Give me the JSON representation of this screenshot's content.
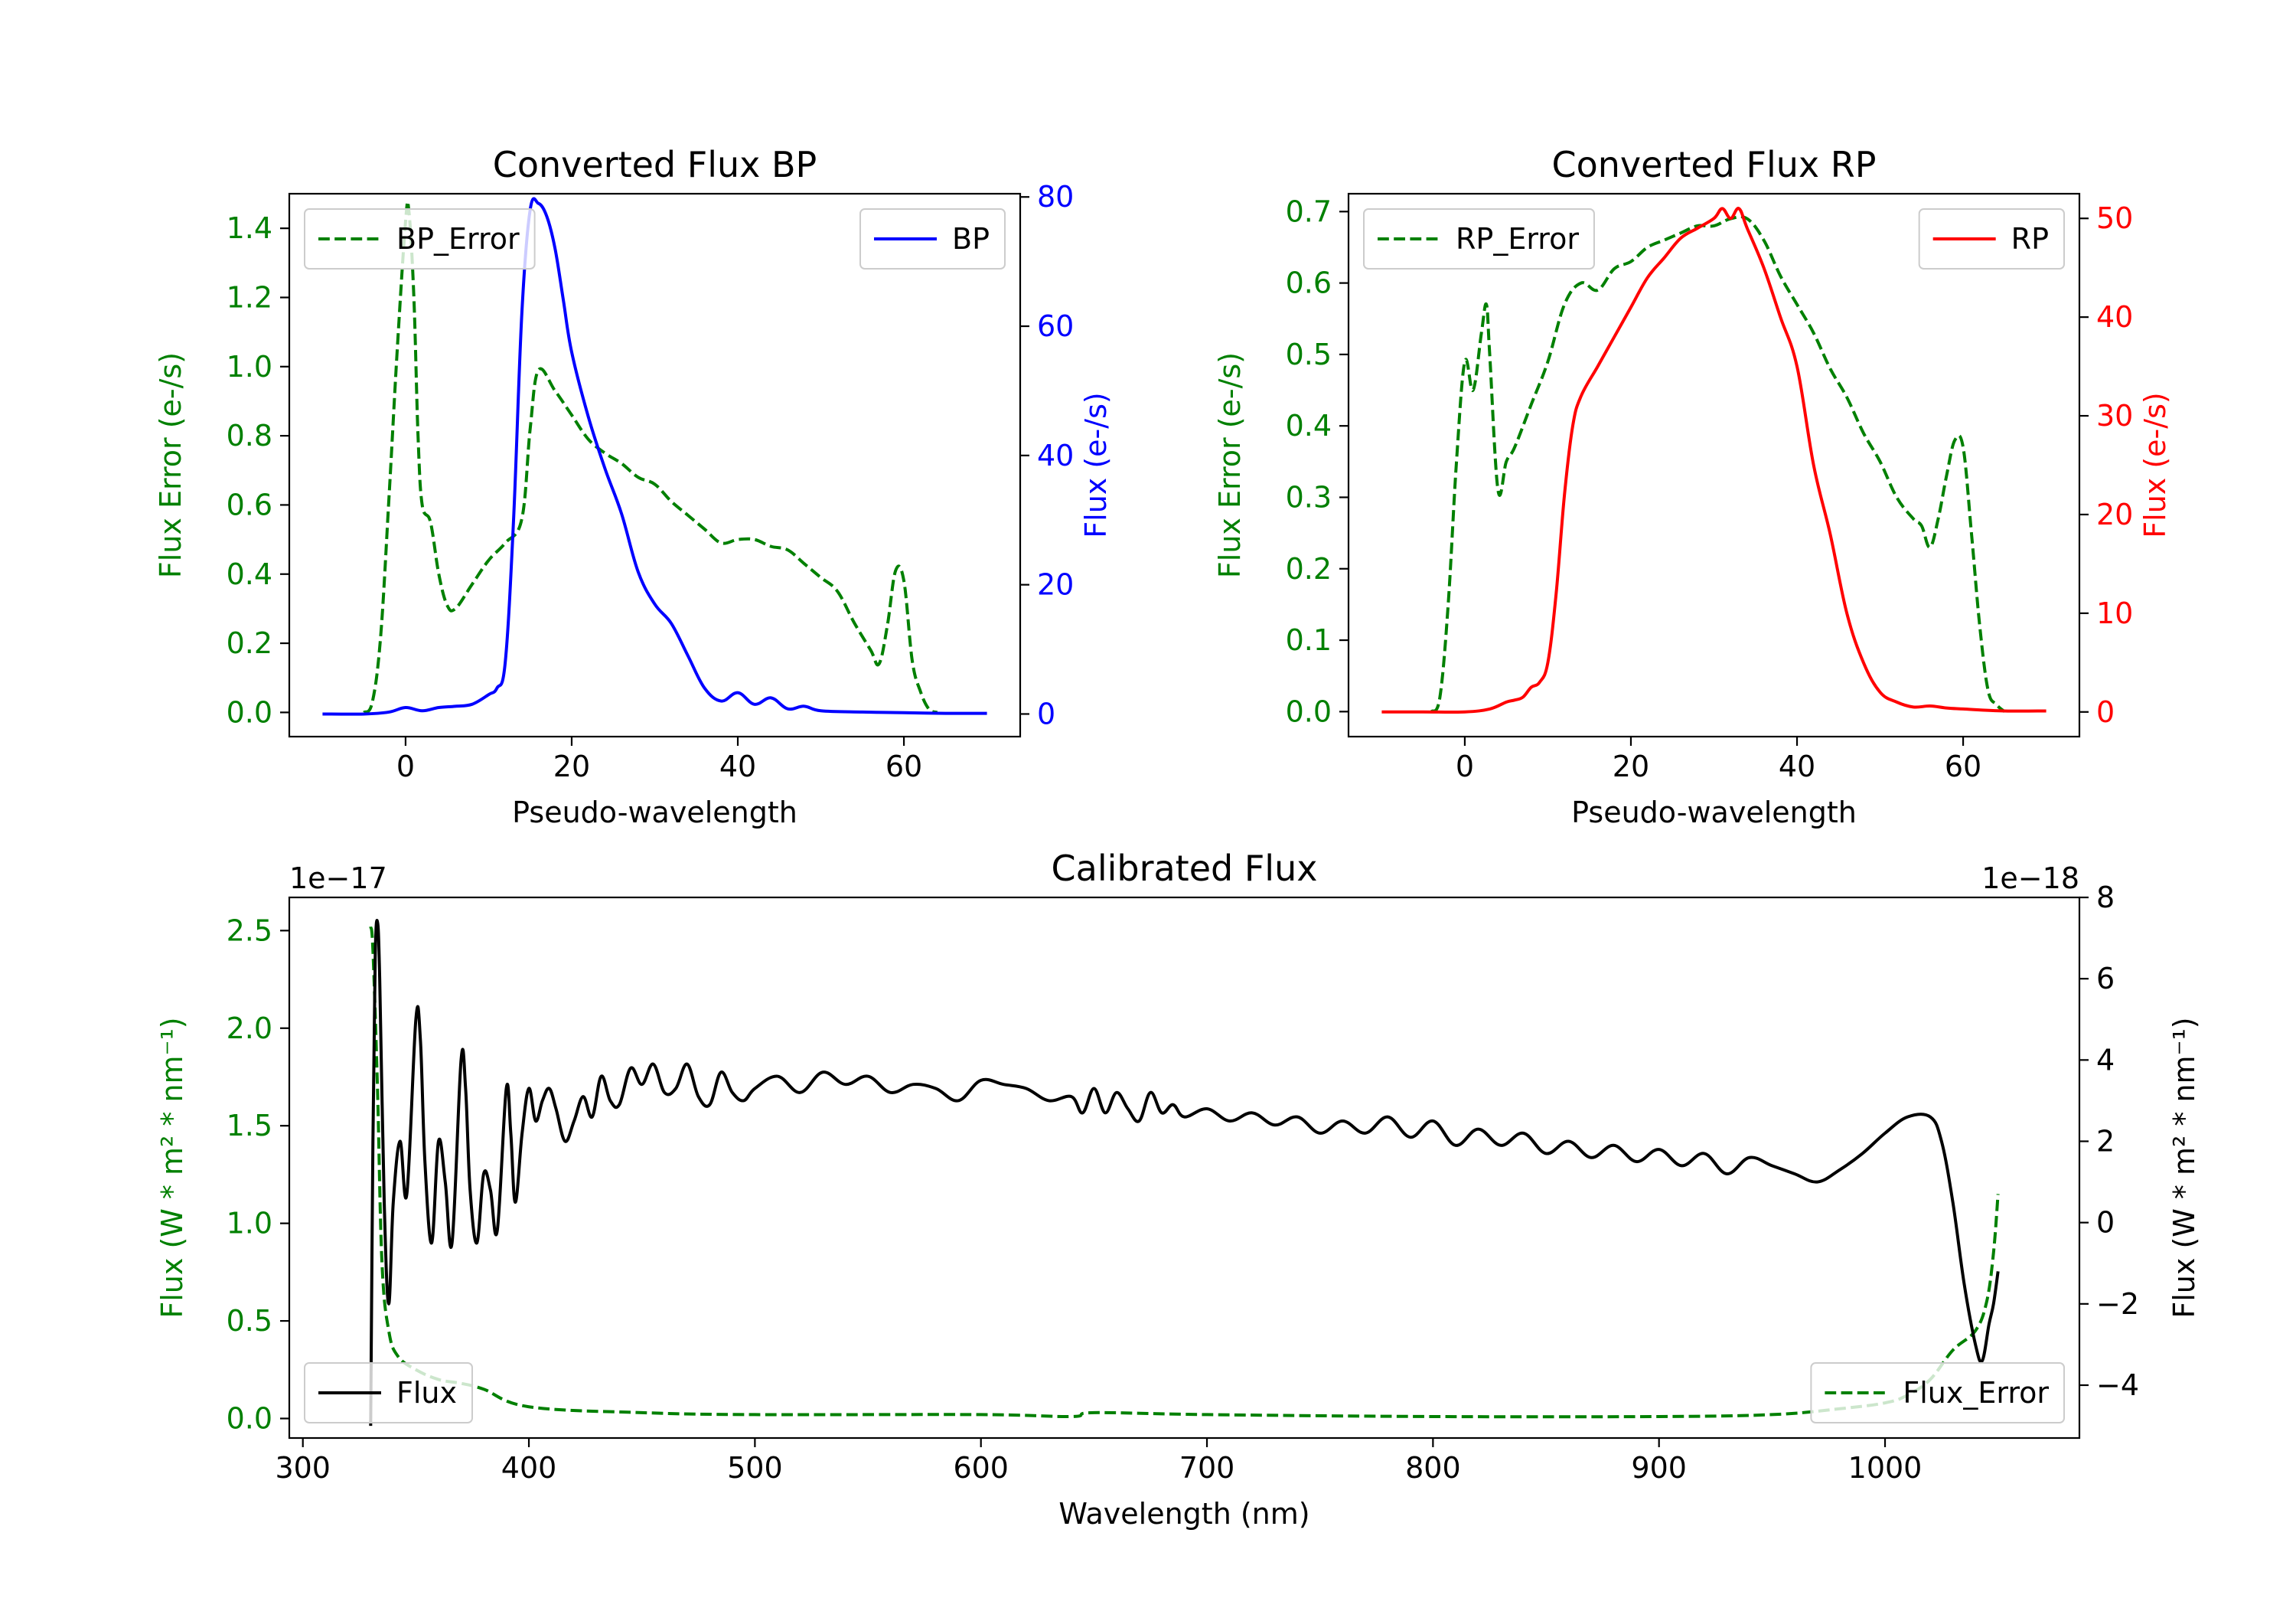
{
  "colors": {
    "green": "#008000",
    "blue": "#0000ff",
    "red": "#ff0000",
    "black": "#000000"
  },
  "chart_data": [
    {
      "type": "line",
      "title": "Converted Flux BP",
      "xlabel": "Pseudo-wavelength",
      "ylabel_left": "Flux Error (e-/s)",
      "ylabel_right": "Flux (e-/s)",
      "xlim": [
        -14,
        74
      ],
      "ylim_left": [
        -0.07,
        1.5
      ],
      "ylim_right": [
        -3.5,
        80.5
      ],
      "xticks": [
        0,
        20,
        40,
        60
      ],
      "yticks_left": [
        0.0,
        0.2,
        0.4,
        0.6,
        0.8,
        1.0,
        1.2,
        1.4
      ],
      "ytick_labels_left": [
        "0.0",
        "0.2",
        "0.4",
        "0.6",
        "0.8",
        "1.0",
        "1.2",
        "1.4"
      ],
      "yticks_right": [
        0,
        20,
        40,
        60,
        80
      ],
      "ytick_labels_right": [
        "0",
        "20",
        "40",
        "60",
        "80"
      ],
      "series": [
        {
          "name": "BP_Error",
          "axis": "left",
          "color": "#008000",
          "style": "dashed",
          "legend_label": "BP_Error",
          "legend_position": "upper left",
          "x": [
            -5,
            -4,
            -3,
            -2,
            -1,
            0,
            0.4,
            1,
            1.5,
            2,
            3,
            4,
            5,
            6,
            8,
            10,
            12,
            14,
            15,
            16,
            18,
            20,
            22,
            24,
            26,
            28,
            30,
            32,
            34,
            36,
            38,
            40,
            42,
            44,
            46,
            48,
            50,
            52,
            54,
            56,
            57,
            58,
            59,
            60,
            61,
            62,
            63,
            64
          ],
          "values": [
            0.0,
            0.03,
            0.22,
            0.62,
            1.05,
            1.42,
            1.45,
            1.2,
            0.8,
            0.6,
            0.55,
            0.4,
            0.31,
            0.3,
            0.37,
            0.44,
            0.49,
            0.56,
            0.82,
            0.99,
            0.93,
            0.86,
            0.79,
            0.75,
            0.72,
            0.68,
            0.66,
            0.61,
            0.57,
            0.53,
            0.49,
            0.5,
            0.5,
            0.48,
            0.47,
            0.43,
            0.39,
            0.35,
            0.26,
            0.18,
            0.14,
            0.25,
            0.41,
            0.38,
            0.15,
            0.06,
            0.01,
            0.0
          ]
        },
        {
          "name": "BP",
          "axis": "right",
          "color": "#0000ff",
          "style": "solid",
          "legend_label": "BP",
          "legend_position": "upper right",
          "x": [
            -10,
            -5,
            -2,
            0,
            2,
            4,
            6,
            8,
            10,
            11,
            12,
            13,
            14,
            15,
            16,
            17,
            18,
            19,
            20,
            22,
            24,
            26,
            28,
            30,
            32,
            34,
            36,
            38,
            40,
            42,
            44,
            46,
            48,
            50,
            55,
            60,
            65,
            70
          ],
          "values": [
            0,
            0,
            0.3,
            1,
            0.5,
            1,
            1.2,
            1.5,
            3,
            4,
            8,
            30,
            62,
            78,
            79,
            77,
            72,
            64,
            56,
            46,
            38,
            31,
            22,
            17,
            14,
            9,
            4,
            2,
            3.3,
            1.5,
            2.5,
            0.8,
            1.2,
            0.5,
            0.3,
            0.2,
            0.1,
            0.1
          ]
        }
      ]
    },
    {
      "type": "line",
      "title": "Converted Flux RP",
      "xlabel": "Pseudo-wavelength",
      "ylabel_left": "Flux Error (e-/s)",
      "ylabel_right": "Flux (e-/s)",
      "xlim": [
        -14,
        74
      ],
      "ylim_left": [
        -0.035,
        0.725
      ],
      "ylim_right": [
        -2.5,
        52.5
      ],
      "xticks": [
        0,
        20,
        40,
        60
      ],
      "yticks_left": [
        0.0,
        0.1,
        0.2,
        0.3,
        0.4,
        0.5,
        0.6,
        0.7
      ],
      "ytick_labels_left": [
        "0.0",
        "0.1",
        "0.2",
        "0.3",
        "0.4",
        "0.5",
        "0.6",
        "0.7"
      ],
      "yticks_right": [
        0,
        10,
        20,
        30,
        40,
        50
      ],
      "ytick_labels_right": [
        "0",
        "10",
        "20",
        "30",
        "40",
        "50"
      ],
      "series": [
        {
          "name": "RP_Error",
          "axis": "left",
          "color": "#008000",
          "style": "dashed",
          "legend_label": "RP_Error",
          "legend_position": "upper left",
          "x": [
            -4,
            -3,
            -2,
            -1,
            0,
            1,
            2,
            2.6,
            3,
            4,
            5,
            6,
            8,
            10,
            12,
            14,
            16,
            18,
            20,
            22,
            24,
            26,
            28,
            30,
            32,
            34,
            36,
            38,
            40,
            42,
            44,
            46,
            48,
            50,
            52,
            54,
            55,
            56,
            57,
            58,
            59,
            60,
            61,
            62,
            63,
            64,
            65
          ],
          "values": [
            0.0,
            0.02,
            0.15,
            0.35,
            0.49,
            0.45,
            0.53,
            0.57,
            0.5,
            0.31,
            0.35,
            0.37,
            0.43,
            0.49,
            0.57,
            0.6,
            0.59,
            0.62,
            0.63,
            0.65,
            0.66,
            0.67,
            0.68,
            0.68,
            0.69,
            0.69,
            0.66,
            0.61,
            0.57,
            0.53,
            0.48,
            0.44,
            0.39,
            0.35,
            0.3,
            0.27,
            0.26,
            0.23,
            0.27,
            0.33,
            0.38,
            0.37,
            0.25,
            0.12,
            0.03,
            0.01,
            0.0
          ]
        },
        {
          "name": "RP",
          "axis": "right",
          "color": "#ff0000",
          "style": "solid",
          "legend_label": "RP",
          "legend_position": "upper right",
          "x": [
            -10,
            -5,
            0,
            3,
            5,
            6,
            7,
            8,
            9,
            10,
            11,
            12,
            13,
            14,
            16,
            18,
            20,
            22,
            24,
            26,
            28,
            30,
            31,
            32,
            33,
            34,
            36,
            38,
            40,
            42,
            44,
            46,
            48,
            50,
            52,
            54,
            56,
            58,
            60,
            65,
            70
          ],
          "values": [
            0,
            0,
            0,
            0.3,
            1,
            1.2,
            1.5,
            2.5,
            3,
            5,
            12,
            22,
            29,
            32,
            35,
            38,
            41,
            44,
            46,
            48,
            49,
            50,
            51,
            50,
            51,
            49,
            45,
            40,
            35,
            25,
            18,
            10,
            5,
            2,
            1,
            0.5,
            0.6,
            0.4,
            0.3,
            0.1,
            0.1
          ]
        }
      ]
    },
    {
      "type": "line",
      "title": "Calibrated Flux",
      "xlabel": "Wavelength (nm)",
      "ylabel_left": "Flux (W * m² * nm⁻¹)",
      "ylabel_right": "Flux (W * m² * nm⁻¹)",
      "offset_left": "1e−17",
      "offset_right": "1e−18",
      "xlim": [
        294,
        1086
      ],
      "ylim_left": [
        -0.1,
        2.67
      ],
      "ylim_right": [
        -5.3,
        8.0
      ],
      "xticks": [
        300,
        400,
        500,
        600,
        700,
        800,
        900,
        1000
      ],
      "yticks_left": [
        0.0,
        0.5,
        1.0,
        1.5,
        2.0,
        2.5
      ],
      "ytick_labels_left": [
        "0.0",
        "0.5",
        "1.0",
        "1.5",
        "2.0",
        "2.5"
      ],
      "yticks_right": [
        -4,
        -2,
        0,
        2,
        4,
        6,
        8
      ],
      "ytick_labels_right": [
        "−4",
        "−2",
        "0",
        "2",
        "4",
        "6",
        "8"
      ],
      "series": [
        {
          "name": "Flux_Error",
          "axis": "left",
          "color": "#008000",
          "style": "dashed",
          "legend_label": "Flux_Error",
          "legend_position": "lower right",
          "x": [
            330,
            331,
            333,
            335,
            338,
            342,
            350,
            360,
            370,
            380,
            400,
            450,
            500,
            600,
            640,
            650,
            700,
            800,
            900,
            950,
            980,
            1000,
            1010,
            1020,
            1030,
            1040,
            1045,
            1048,
            1050
          ],
          "values": [
            2.52,
            2.4,
            1.7,
            0.8,
            0.45,
            0.32,
            0.25,
            0.2,
            0.18,
            0.15,
            0.06,
            0.03,
            0.02,
            0.02,
            0.01,
            0.03,
            0.02,
            0.01,
            0.01,
            0.02,
            0.05,
            0.08,
            0.12,
            0.2,
            0.35,
            0.45,
            0.6,
            0.85,
            1.15
          ]
        },
        {
          "name": "Flux",
          "axis": "right",
          "color": "#000000",
          "style": "solid",
          "legend_label": "Flux",
          "legend_position": "lower left",
          "x": [
            330,
            331,
            332,
            333,
            334,
            336,
            338,
            340,
            343,
            346,
            350,
            352,
            354,
            357,
            360,
            363,
            366,
            370,
            372,
            374,
            377,
            380,
            383,
            386,
            390,
            392,
            394,
            397,
            400,
            403,
            406,
            409,
            412,
            416,
            420,
            424,
            428,
            432,
            436,
            440,
            445,
            450,
            455,
            460,
            465,
            470,
            475,
            480,
            485,
            490,
            495,
            500,
            510,
            520,
            530,
            540,
            550,
            560,
            570,
            580,
            590,
            600,
            610,
            620,
            630,
            640,
            645,
            650,
            655,
            660,
            665,
            670,
            675,
            680,
            685,
            690,
            700,
            710,
            720,
            730,
            740,
            750,
            760,
            770,
            780,
            790,
            800,
            810,
            820,
            830,
            840,
            850,
            860,
            870,
            880,
            890,
            900,
            910,
            920,
            930,
            940,
            950,
            960,
            970,
            980,
            990,
            1000,
            1010,
            1020,
            1025,
            1030,
            1035,
            1040,
            1043,
            1046,
            1048,
            1050
          ],
          "values": [
            -5,
            2,
            6.5,
            7.4,
            6,
            0.5,
            -2,
            0.5,
            2,
            0.7,
            5,
            4.5,
            1.5,
            -0.5,
            2,
            1,
            -0.5,
            4,
            3.3,
            0.8,
            -0.5,
            1.2,
            0.8,
            -0.2,
            3.3,
            2.2,
            0.5,
            2.2,
            3.3,
            2.5,
            3.0,
            3.3,
            2.8,
            2,
            2.5,
            3.1,
            2.6,
            3.6,
            3.0,
            2.9,
            3.8,
            3.4,
            3.9,
            3.2,
            3.3,
            3.9,
            3.1,
            2.9,
            3.7,
            3.2,
            3.0,
            3.3,
            3.6,
            3.2,
            3.7,
            3.4,
            3.6,
            3.2,
            3.4,
            3.3,
            3.0,
            3.5,
            3.4,
            3.3,
            3.0,
            3.1,
            2.7,
            3.3,
            2.7,
            3.2,
            2.8,
            2.5,
            3.2,
            2.7,
            2.9,
            2.6,
            2.8,
            2.5,
            2.7,
            2.4,
            2.6,
            2.2,
            2.5,
            2.2,
            2.6,
            2.1,
            2.5,
            1.9,
            2.3,
            1.9,
            2.2,
            1.7,
            2.0,
            1.6,
            1.9,
            1.5,
            1.8,
            1.4,
            1.7,
            1.2,
            1.6,
            1.4,
            1.2,
            1.0,
            1.3,
            1.7,
            2.2,
            2.6,
            2.6,
            2.0,
            0.5,
            -1.5,
            -3,
            -3.4,
            -2.5,
            -2.0,
            -1.2
          ]
        }
      ]
    }
  ]
}
